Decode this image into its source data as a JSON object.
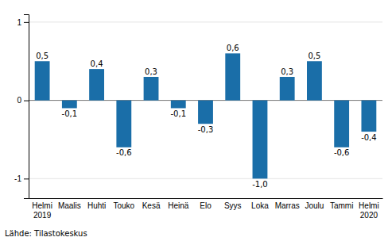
{
  "chart_data": {
    "type": "bar",
    "categories": [
      "Helmi\n2019",
      "Maalis",
      "Huhti",
      "Touko",
      "Kesä",
      "Heinä",
      "Elo",
      "Syys",
      "Loka",
      "Marras",
      "Joulu",
      "Tammi",
      "Helmi\n2020"
    ],
    "values": [
      0.5,
      -0.1,
      0.4,
      -0.6,
      0.3,
      -0.1,
      -0.3,
      0.6,
      -1.0,
      0.3,
      0.5,
      -0.6,
      -0.4
    ],
    "value_labels": [
      "0,5",
      "-0,1",
      "0,4",
      "-0,6",
      "0,3",
      "-0,1",
      "-0,3",
      "0,6",
      "-1,0",
      "0,3",
      "0,5",
      "-0,6",
      "-0,4"
    ],
    "data_labels": true,
    "color": "#1a6ea8",
    "ylim": [
      -1.25,
      1.1
    ],
    "yticks": [
      -1,
      0,
      1
    ],
    "grid": true,
    "source": "Lähde: Tilastokeskus"
  }
}
